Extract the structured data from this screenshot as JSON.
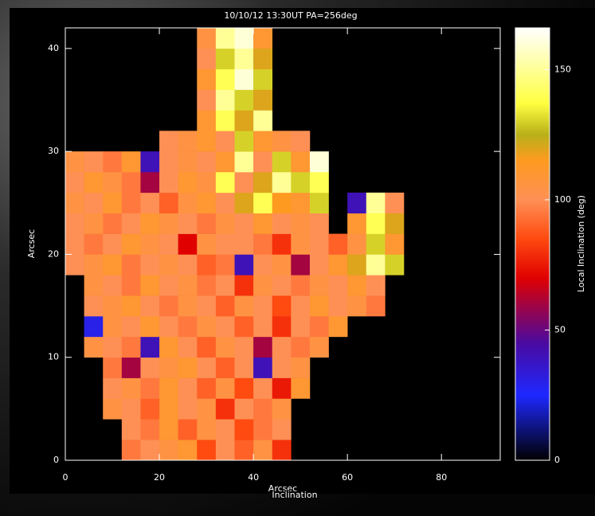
{
  "chart_data": {
    "type": "heatmap",
    "title": "10/10/12 13:30UT PA=256deg",
    "xlabel": "Arcsec",
    "ylabel": "Arcsec",
    "overlay_text": "Inclination",
    "colorbar_label": "Local Inclination (deg)",
    "xlim": [
      0,
      92.5
    ],
    "ylim": [
      0,
      42
    ],
    "xticks": [
      0,
      20,
      40,
      60,
      80
    ],
    "yticks": [
      0,
      10,
      20,
      30,
      40
    ],
    "clim": [
      0,
      166
    ],
    "cticks": [
      0,
      50,
      100,
      150
    ],
    "colorscale": [
      [
        0,
        "#000000"
      ],
      [
        25,
        "#1e28ff"
      ],
      [
        45,
        "#4a0aa0"
      ],
      [
        70,
        "#e00000"
      ],
      [
        85,
        "#ff4a10"
      ],
      [
        100,
        "#ff9055"
      ],
      [
        115,
        "#ff9a20"
      ],
      [
        125,
        "#b8b018"
      ],
      [
        137,
        "#ffff40"
      ],
      [
        166,
        "#ffffff"
      ]
    ],
    "xbins": [
      0,
      4,
      8,
      12,
      16,
      20,
      24,
      28,
      32,
      36,
      40,
      44,
      48,
      52,
      56,
      60,
      64,
      68,
      72,
      76,
      80,
      84,
      88,
      92
    ],
    "ybins": [
      0,
      2,
      4,
      6,
      8,
      10,
      12,
      14,
      16,
      18,
      20,
      22,
      24,
      26,
      28,
      30,
      32,
      34,
      36,
      38,
      40,
      42
    ],
    "z": [
      [
        null,
        null,
        null,
        95,
        100,
        105,
        110,
        85,
        100,
        90,
        105,
        80,
        null,
        null,
        null,
        null,
        null,
        null,
        null,
        null,
        null,
        null,
        null
      ],
      [
        null,
        null,
        null,
        100,
        95,
        110,
        90,
        105,
        100,
        85,
        95,
        100,
        null,
        null,
        null,
        null,
        null,
        null,
        null,
        null,
        null,
        null,
        null
      ],
      [
        null,
        null,
        105,
        100,
        90,
        110,
        100,
        105,
        80,
        100,
        95,
        105,
        null,
        null,
        null,
        null,
        null,
        null,
        null,
        null,
        null,
        null,
        null
      ],
      [
        null,
        null,
        100,
        105,
        95,
        110,
        100,
        90,
        105,
        85,
        100,
        75,
        110,
        null,
        null,
        null,
        null,
        null,
        null,
        null,
        null,
        null,
        null
      ],
      [
        null,
        null,
        95,
        60,
        100,
        105,
        110,
        100,
        90,
        100,
        40,
        100,
        105,
        null,
        null,
        null,
        null,
        null,
        null,
        null,
        null,
        null,
        null
      ],
      [
        null,
        105,
        100,
        95,
        40,
        110,
        100,
        90,
        105,
        100,
        60,
        100,
        95,
        105,
        null,
        null,
        null,
        null,
        null,
        null,
        null,
        null,
        null
      ],
      [
        null,
        30,
        105,
        100,
        110,
        100,
        95,
        105,
        100,
        90,
        100,
        80,
        100,
        95,
        110,
        null,
        null,
        null,
        null,
        null,
        null,
        null,
        null
      ],
      [
        null,
        100,
        105,
        110,
        100,
        95,
        105,
        100,
        90,
        105,
        100,
        85,
        100,
        110,
        100,
        105,
        95,
        null,
        null,
        null,
        null,
        null,
        null
      ],
      [
        null,
        105,
        100,
        95,
        110,
        100,
        105,
        95,
        100,
        80,
        105,
        100,
        95,
        105,
        100,
        110,
        100,
        null,
        null,
        null,
        null,
        null,
        null
      ],
      [
        100,
        105,
        110,
        95,
        100,
        105,
        100,
        90,
        95,
        40,
        100,
        105,
        60,
        100,
        110,
        120,
        150,
        130,
        null,
        null,
        null,
        null,
        null
      ],
      [
        100,
        95,
        100,
        110,
        105,
        100,
        70,
        105,
        100,
        100,
        95,
        80,
        105,
        100,
        90,
        105,
        130,
        110,
        null,
        null,
        null,
        null,
        null
      ],
      [
        100,
        105,
        95,
        100,
        110,
        105,
        100,
        95,
        105,
        100,
        110,
        100,
        105,
        100,
        null,
        110,
        140,
        120,
        null,
        null,
        null,
        null,
        null
      ],
      [
        105,
        100,
        110,
        95,
        100,
        90,
        105,
        110,
        100,
        120,
        140,
        115,
        110,
        130,
        null,
        40,
        150,
        100,
        null,
        null,
        null,
        null,
        null
      ],
      [
        100,
        110,
        105,
        95,
        60,
        100,
        110,
        105,
        140,
        100,
        120,
        150,
        130,
        140,
        null,
        null,
        null,
        null,
        null,
        null,
        null,
        null,
        null
      ],
      [
        105,
        100,
        95,
        110,
        40,
        100,
        105,
        100,
        110,
        150,
        100,
        130,
        110,
        160,
        null,
        null,
        null,
        null,
        null,
        null,
        null,
        null,
        null
      ],
      [
        null,
        null,
        null,
        null,
        null,
        100,
        105,
        110,
        100,
        130,
        110,
        105,
        100,
        null,
        null,
        null,
        null,
        null,
        null,
        null,
        null,
        null,
        null
      ],
      [
        null,
        null,
        null,
        null,
        null,
        null,
        null,
        110,
        140,
        120,
        150,
        null,
        null,
        null,
        null,
        null,
        null,
        null,
        null,
        null,
        null,
        null,
        null
      ],
      [
        null,
        null,
        null,
        null,
        null,
        null,
        null,
        100,
        150,
        130,
        120,
        null,
        null,
        null,
        null,
        null,
        null,
        null,
        null,
        null,
        null,
        null,
        null
      ],
      [
        null,
        null,
        null,
        null,
        null,
        null,
        null,
        110,
        140,
        160,
        130,
        null,
        null,
        null,
        null,
        null,
        null,
        null,
        null,
        null,
        null,
        null,
        null
      ],
      [
        null,
        null,
        null,
        null,
        null,
        null,
        null,
        100,
        130,
        150,
        120,
        null,
        null,
        null,
        null,
        null,
        null,
        null,
        null,
        null,
        null,
        null,
        null
      ],
      [
        null,
        null,
        null,
        null,
        null,
        null,
        null,
        105,
        150,
        160,
        110,
        null,
        null,
        null,
        null,
        null,
        null,
        null,
        null,
        null,
        null,
        null,
        null
      ]
    ]
  }
}
